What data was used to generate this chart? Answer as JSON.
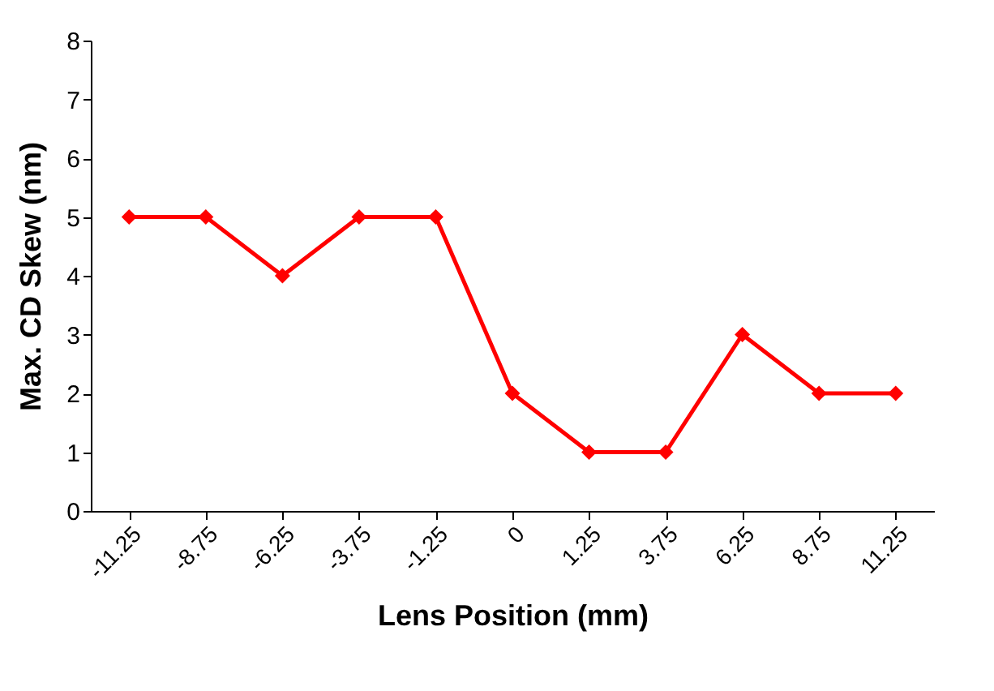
{
  "chart_data": {
    "type": "line",
    "xlabel": "Lens Position (mm)",
    "ylabel": "Max. CD Skew (nm)",
    "categories": [
      "-11.25",
      "-8.75",
      "-6.25",
      "-3.75",
      "-1.25",
      "0",
      "1.25",
      "3.75",
      "6.25",
      "8.75",
      "11.25"
    ],
    "series": [
      {
        "color": "#ff0000",
        "values": [
          5,
          5,
          4,
          5,
          5,
          2,
          1,
          1,
          3,
          2,
          2
        ]
      }
    ],
    "ylim": [
      0,
      8
    ],
    "yticks": [
      0,
      1,
      2,
      3,
      4,
      5,
      6,
      7,
      8
    ],
    "grid": false,
    "marker": "diamond",
    "line_style": "solid"
  }
}
